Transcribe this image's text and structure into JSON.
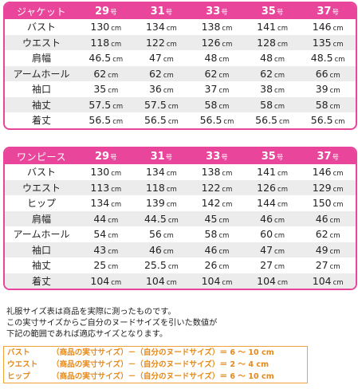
{
  "jacket": {
    "header": "ジャケット",
    "sizes": [
      "29",
      "31",
      "33",
      "35",
      "37"
    ],
    "size_suffix": "号",
    "rows": [
      {
        "label": "バスト",
        "values": [
          "130",
          "134",
          "138",
          "141",
          "146"
        ]
      },
      {
        "label": "ウエスト",
        "values": [
          "118",
          "122",
          "126",
          "128",
          "135"
        ]
      },
      {
        "label": "肩幅",
        "values": [
          "46.5",
          "47",
          "48",
          "48",
          "48.5"
        ]
      },
      {
        "label": "アームホール",
        "values": [
          "62",
          "62",
          "62",
          "62",
          "66"
        ]
      },
      {
        "label": "袖口",
        "values": [
          "35",
          "36",
          "37",
          "38",
          "39"
        ]
      },
      {
        "label": "袖丈",
        "values": [
          "57.5",
          "57.5",
          "58",
          "58",
          "58"
        ]
      },
      {
        "label": "着丈",
        "values": [
          "56.5",
          "56.5",
          "56.5",
          "56.5",
          "56.5"
        ]
      }
    ]
  },
  "dress": {
    "header": "ワンピース",
    "sizes": [
      "29",
      "31",
      "33",
      "35",
      "37"
    ],
    "size_suffix": "号",
    "rows": [
      {
        "label": "バスト",
        "values": [
          "130",
          "134",
          "138",
          "141",
          "146"
        ]
      },
      {
        "label": "ウエスト",
        "values": [
          "113",
          "118",
          "122",
          "126",
          "129"
        ]
      },
      {
        "label": "ヒップ",
        "values": [
          "134",
          "139",
          "142",
          "144",
          "150"
        ]
      },
      {
        "label": "肩幅",
        "values": [
          "44",
          "44.5",
          "45",
          "46",
          "46"
        ]
      },
      {
        "label": "アームホール",
        "values": [
          "54",
          "56",
          "58",
          "60",
          "62"
        ]
      },
      {
        "label": "袖口",
        "values": [
          "43",
          "46",
          "46",
          "47",
          "49"
        ]
      },
      {
        "label": "袖丈",
        "values": [
          "25",
          "25.5",
          "26",
          "27",
          "27"
        ]
      },
      {
        "label": "着丈",
        "values": [
          "104",
          "104",
          "104",
          "104",
          "104"
        ]
      }
    ]
  },
  "unit": "cm",
  "note": {
    "line1": "礼服サイズ表は商品を実際に測ったものです。",
    "line2": "この実寸サイズからご自分のヌードサイズを引いた数値が",
    "line3": "下記の範囲であれば適応サイズとなります。"
  },
  "formulas": [
    {
      "key": "バスト",
      "text": "（商品の実寸サイズ）－（自分のヌードサイズ）＝ 6 ～ 10 cm"
    },
    {
      "key": "ウエスト",
      "text": "（商品の実寸サイズ）－（自分のヌードサイズ）＝  2 ～ 4 cm"
    },
    {
      "key": "ヒップ",
      "text": "（商品の実寸サイズ）－（自分のヌードサイズ）＝ 6 ～ 10 cm"
    }
  ],
  "colors": {
    "accent": "#e8459b",
    "formula": "#e68a1a",
    "stripe": "#ececec"
  }
}
